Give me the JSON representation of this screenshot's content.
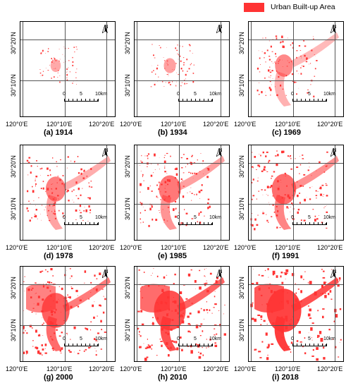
{
  "legend": {
    "label": "Urban Built-up Area",
    "color": "#ff3333"
  },
  "axis_labels": {
    "lat_top": "30°20'N",
    "lat_bottom": "30°10'N",
    "lon_left": "120°0'E",
    "lon_mid": "120°10'E",
    "lon_right": "120°20'E"
  },
  "north_label": "N",
  "scale": {
    "t0": "0",
    "t5": "5",
    "t10": "10km"
  },
  "panels": [
    {
      "caption": "(a) 1914",
      "density": 0.12
    },
    {
      "caption": "(b) 1934",
      "density": 0.18
    },
    {
      "caption": "(c) 1969",
      "density": 0.38
    },
    {
      "caption": "(d) 1978",
      "density": 0.45
    },
    {
      "caption": "(e) 1985",
      "density": 0.52
    },
    {
      "caption": "(f) 1991",
      "density": 0.6
    },
    {
      "caption": "(g) 2000",
      "density": 0.72
    },
    {
      "caption": "(h) 2010",
      "density": 0.85
    },
    {
      "caption": "(i) 2018",
      "density": 0.95
    }
  ]
}
